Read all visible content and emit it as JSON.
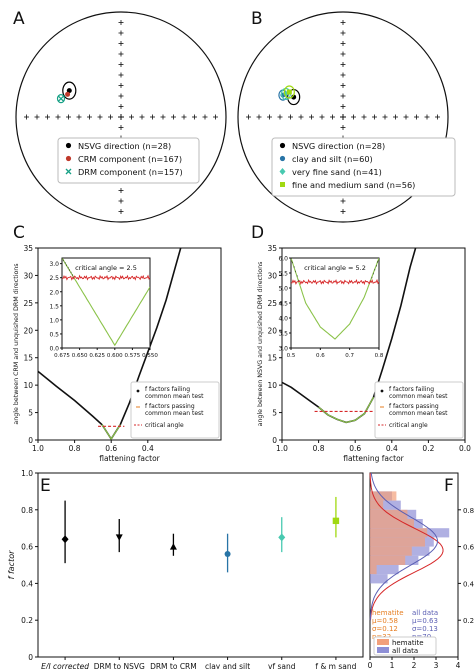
{
  "chart_data": [
    {
      "panel": "A",
      "type": "scatter",
      "projection": "equal-area stereonet",
      "legend": [
        "NSVG direction (n=28)",
        "CRM component (n=167)",
        "DRM component (n=157)"
      ],
      "legend_position": "bottom-right",
      "colors": {
        "nsvg": "#000000",
        "crm": "#c0392b",
        "drm": "#16a085"
      },
      "points": [
        {
          "series": "NSVG direction",
          "dec": 297,
          "inc": 44
        },
        {
          "series": "CRM component",
          "dec": 293,
          "inc": 44
        },
        {
          "series": "DRM component",
          "dec": 287,
          "inc": 40
        }
      ]
    },
    {
      "panel": "B",
      "type": "scatter",
      "projection": "equal-area stereonet",
      "legend": [
        "NSVG direction (n=28)",
        "clay and silt (n=60)",
        "very fine sand (n=41)",
        "fine and medium sand (n=56)"
      ],
      "legend_position": "bottom-right",
      "colors": {
        "nsvg": "#000000",
        "clay": "#2874a6",
        "vfsand": "#48c9b0",
        "fmsand": "#a0d911"
      },
      "points": [
        {
          "series": "NSVG direction",
          "dec": 292,
          "inc": 48
        },
        {
          "series": "clay and silt",
          "dec": 290,
          "inc": 39
        },
        {
          "series": "very fine sand",
          "dec": 292,
          "inc": 41
        },
        {
          "series": "fine and medium sand",
          "dec": 295,
          "inc": 43
        }
      ]
    },
    {
      "panel": "C",
      "type": "line",
      "xlabel": "flattening factor",
      "ylabel": "angle between CRM and unquished DRM directions",
      "xlim": [
        1.0,
        0.0
      ],
      "ylim": [
        0,
        35
      ],
      "xticks": [
        "1.0",
        "0.8",
        "0.6",
        "0.4"
      ],
      "yticks": [
        "0",
        "5",
        "10",
        "15",
        "20",
        "25",
        "30",
        "35"
      ],
      "legend": [
        "f factors failing common mean test",
        "f factors passing common mean test",
        "critical angle"
      ],
      "critical_angle": 2.5,
      "x": [
        1.0,
        0.9,
        0.8,
        0.7,
        0.65,
        0.6,
        0.55,
        0.5,
        0.45,
        0.4,
        0.35,
        0.3,
        0.25,
        0.22
      ],
      "y": [
        12.5,
        9.8,
        7.2,
        4.3,
        2.8,
        0.2,
        2.8,
        6.8,
        11.5,
        16.0,
        20.5,
        25.5,
        31.5,
        35.0
      ],
      "pass_range": [
        0.65,
        0.55
      ],
      "inset": {
        "annotation": "critical angle = 2.5",
        "xlim": [
          0.675,
          0.55
        ],
        "ylim": [
          0,
          3.2
        ],
        "xticks": [
          "0.675",
          "0.650",
          "0.625",
          "0.600",
          "0.575",
          "0.550"
        ],
        "yticks": [
          "0.0",
          "0.5",
          "1.0",
          "1.5",
          "2.0",
          "2.5",
          "3.0"
        ],
        "x": [
          0.675,
          0.6,
          0.55
        ],
        "y": [
          3.2,
          0.1,
          3.2
        ]
      }
    },
    {
      "panel": "D",
      "type": "line",
      "xlabel": "flattening factor",
      "ylabel": "angle between NSVG and unquished DRM directions",
      "xlim": [
        1.0,
        0.0
      ],
      "ylim": [
        0,
        35
      ],
      "xticks": [
        "1.0",
        "0.8",
        "0.6",
        "0.4",
        "0.2",
        "0.0"
      ],
      "yticks": [
        "0",
        "5",
        "10",
        "15",
        "20",
        "25",
        "30",
        "35"
      ],
      "legend": [
        "f factors failing common mean test",
        "f factors passing common mean test",
        "critical angle"
      ],
      "critical_angle": 5.2,
      "x": [
        1.0,
        0.95,
        0.9,
        0.85,
        0.8,
        0.75,
        0.7,
        0.65,
        0.6,
        0.55,
        0.5,
        0.45,
        0.4,
        0.35,
        0.3,
        0.27
      ],
      "y": [
        10.5,
        9.6,
        8.4,
        7.2,
        6.0,
        4.6,
        3.8,
        3.2,
        3.6,
        4.8,
        7.8,
        13.0,
        18.5,
        24.5,
        31.5,
        35.0
      ],
      "pass_range": [
        0.8,
        0.5
      ],
      "inset": {
        "annotation": "critical angle = 5.2",
        "xlim": [
          0.5,
          0.8
        ],
        "ylim": [
          3.0,
          6.0
        ],
        "xticks": [
          "0.5",
          "0.6",
          "0.7",
          "0.8"
        ],
        "yticks": [
          "3.0",
          "3.5",
          "4.0",
          "4.5",
          "5.0",
          "5.5",
          "6.0"
        ],
        "x": [
          0.5,
          0.55,
          0.6,
          0.65,
          0.7,
          0.75,
          0.8
        ],
        "y": [
          6.0,
          4.5,
          3.7,
          3.3,
          3.8,
          4.7,
          6.0
        ]
      }
    },
    {
      "panel": "E",
      "type": "scatter",
      "ylabel": "f factor",
      "ylim": [
        0,
        1.0
      ],
      "yticks": [
        "0",
        "0.2",
        "0.4",
        "0.6",
        "0.8",
        "1.0"
      ],
      "categories": [
        "E/I corrected",
        "DRM to NSVG",
        "DRM to CRM",
        "clay and silt",
        "vf sand",
        "f & m sand"
      ],
      "values": [
        0.64,
        0.65,
        0.6,
        0.56,
        0.65,
        0.74
      ],
      "lower": [
        0.51,
        0.57,
        0.55,
        0.46,
        0.57,
        0.65
      ],
      "upper": [
        0.85,
        0.75,
        0.67,
        0.67,
        0.76,
        0.87
      ],
      "colors": [
        "#000000",
        "#000000",
        "#000000",
        "#2874a6",
        "#48c9b0",
        "#a0d911"
      ]
    },
    {
      "panel": "F",
      "type": "histogram",
      "xlabel": "normalized density",
      "xlim": [
        0,
        4
      ],
      "xticks": [
        "0",
        "1",
        "2",
        "3",
        "4"
      ],
      "ylim": [
        0,
        1.0
      ],
      "yticks": [
        "0.2",
        "0.4",
        "0.6",
        "0.8"
      ],
      "legend": [
        "hematite",
        "all data"
      ],
      "legend_position": "bottom",
      "stats": [
        {
          "name": "hematite",
          "lines": [
            "hematite",
            "μ=0.58",
            "σ=0.12",
            "n=32"
          ],
          "color": "#e67e22"
        },
        {
          "name": "all data",
          "lines": [
            "all data",
            "μ=0.63",
            "σ=0.13",
            "n=70"
          ],
          "color": "#5b5fb3"
        }
      ],
      "bins": [
        0.85,
        0.8,
        0.75,
        0.7,
        0.65,
        0.6,
        0.55,
        0.5,
        0.45,
        0.4
      ],
      "hematite": [
        1.2,
        0.6,
        1.7,
        2.0,
        2.6,
        2.5,
        1.9,
        1.6,
        0.3,
        0.0
      ],
      "all_data": [
        1.0,
        1.4,
        2.1,
        2.4,
        3.6,
        2.9,
        2.7,
        2.2,
        1.3,
        0.8
      ]
    }
  ]
}
